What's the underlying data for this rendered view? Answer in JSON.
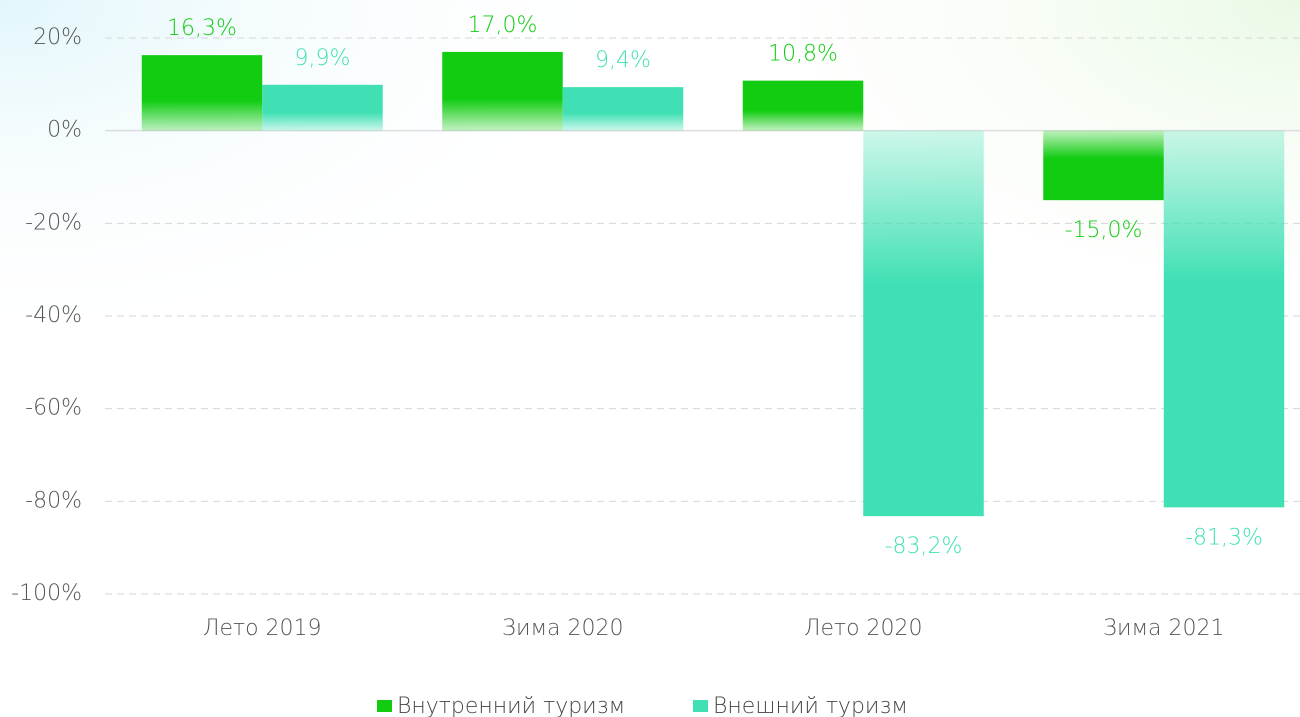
{
  "chart_data": {
    "type": "bar",
    "categories": [
      "Лето 2019",
      "Зима 2020",
      "Лето 2020",
      "Зима 2021"
    ],
    "series": [
      {
        "name": "Внутренний туризм",
        "color": "#11cc11",
        "values": [
          16.3,
          17.0,
          10.8,
          -15.0
        ],
        "value_labels": [
          "16,3%",
          "17,0%",
          "10,8%",
          "-15,0%"
        ]
      },
      {
        "name": "Внешний туризм",
        "color": "#40e0b4",
        "values": [
          9.9,
          9.4,
          -83.2,
          -81.3
        ],
        "value_labels": [
          "9,9%",
          "9,4%",
          "-83,2%",
          "-81,3%"
        ]
      }
    ],
    "ylim": [
      -100,
      20
    ],
    "yticks": [
      {
        "value": 20,
        "label": "20%"
      },
      {
        "value": 0,
        "label": "0%"
      },
      {
        "value": -20,
        "label": "-20%"
      },
      {
        "value": -40,
        "label": "-40%"
      },
      {
        "value": -60,
        "label": "-60%"
      },
      {
        "value": -80,
        "label": "-80%"
      },
      {
        "value": -100,
        "label": "-100%"
      }
    ],
    "grid": true,
    "legend": "bottom"
  }
}
